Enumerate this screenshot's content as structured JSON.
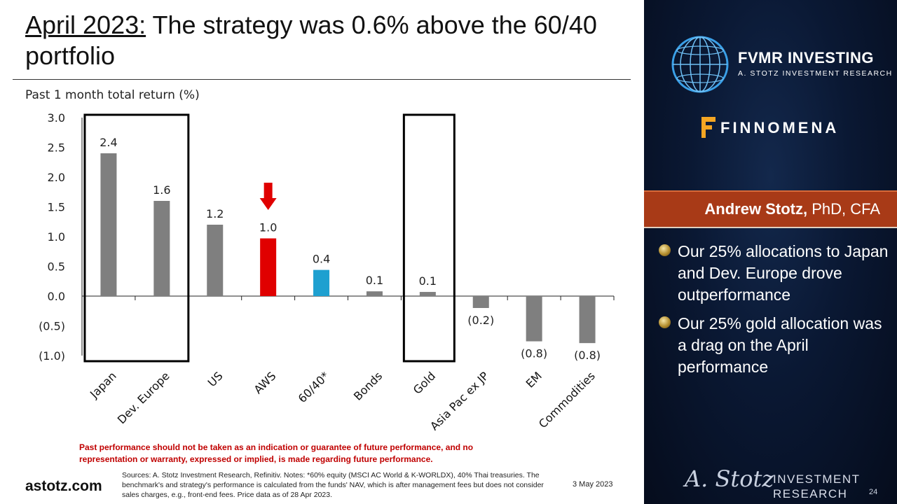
{
  "header": {
    "title_highlight": "April 2023:",
    "title_rest": " The strategy was 0.6% above the 60/40 portfolio"
  },
  "chart_data": {
    "type": "bar",
    "title": "Past 1 month total return (%)",
    "categories": [
      "Japan",
      "Dev. Europe",
      "US",
      "AWS",
      "60/40*",
      "Bonds",
      "Gold",
      "Asia Pac ex JP",
      "EM",
      "Commodities"
    ],
    "values": [
      2.4,
      1.6,
      1.2,
      0.97,
      0.44,
      0.08,
      0.07,
      -0.2,
      -0.76,
      -0.79
    ],
    "data_labels": [
      "2.4",
      "1.6",
      "1.2",
      "1.0",
      "0.4",
      "0.1",
      "0.1",
      "(0.2)",
      "(0.8)",
      "(0.8)"
    ],
    "bar_colors": [
      "#7f7f7f",
      "#7f7f7f",
      "#7f7f7f",
      "#e00000",
      "#1ea0d0",
      "#7f7f7f",
      "#7f7f7f",
      "#7f7f7f",
      "#7f7f7f",
      "#7f7f7f"
    ],
    "ylim": [
      -1.0,
      3.0
    ],
    "yticks": [
      3.0,
      2.5,
      2.0,
      1.5,
      1.0,
      0.5,
      0.0,
      -0.5,
      -1.0
    ],
    "ytick_labels": [
      "3.0",
      "2.5",
      "2.0",
      "1.5",
      "1.0",
      "0.5",
      "0.0",
      "(0.5)",
      "(1.0)"
    ],
    "grid": false,
    "highlight_boxes": [
      [
        "Japan",
        "Dev. Europe"
      ],
      [
        "Gold"
      ]
    ],
    "arrow_on": "AWS"
  },
  "footer": {
    "disclaimer": "Past performance should not be taken as an indication or guarantee of future performance, and no representation or warranty, expressed or implied, is made regarding future performance.",
    "site": "astotz.com",
    "sources": "Sources: A. Stotz Investment Research, Refinitiv. Notes: *60% equity (MSCI AC World & K-WORLDX), 40% Thai treasuries. The benchmark's and strategy's performance is calculated from the funds' NAV, which is after management fees but does not consider sales charges, e.g., front-end fees. Price data as of 28 Apr 2023.",
    "date": "3 May 2023",
    "page_number": "24"
  },
  "panel": {
    "brand": "FVMR INVESTING",
    "brand_sub": "A. STOTZ INVESTMENT RESEARCH",
    "partner": "FINNOMENA",
    "presenter_name": "Andrew Stotz,",
    "presenter_title": " PhD, CFA",
    "bullets": [
      "Our 25% allocations to Japan and Dev. Europe drove outperformance",
      "Our 25% gold allocation was a drag on the April performance"
    ],
    "signature": "A. Stotz",
    "ir_line1": "INVESTMENT",
    "ir_line2": "RESEARCH"
  },
  "colors": {
    "panel_bg": "#0a1833",
    "name_bar": "#a83a17",
    "bar_default": "#7f7f7f",
    "bar_strategy": "#e00000",
    "bar_benchmark": "#1ea0d0",
    "disclaimer": "#c00000"
  },
  "icons": [
    "globe-icon",
    "finnomena-logo-icon",
    "down-arrow-icon",
    "bullet-icon"
  ]
}
